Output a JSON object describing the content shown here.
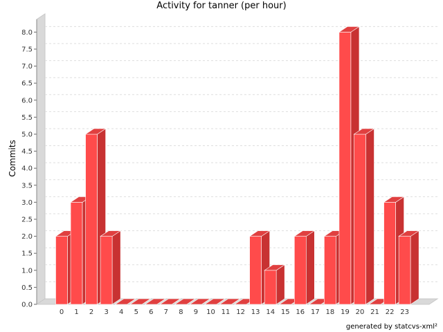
{
  "chart_data": {
    "type": "bar",
    "title": "Activity for tanner (per hour)",
    "xlabel": "",
    "ylabel": "Commits",
    "categories": [
      "0",
      "1",
      "2",
      "3",
      "4",
      "5",
      "6",
      "7",
      "8",
      "9",
      "10",
      "11",
      "12",
      "13",
      "14",
      "15",
      "16",
      "17",
      "18",
      "19",
      "20",
      "21",
      "22",
      "23"
    ],
    "values": [
      2,
      3,
      5,
      2,
      0,
      0,
      0,
      0,
      0,
      0,
      0,
      0,
      0,
      2,
      1,
      0,
      2,
      0,
      2,
      8,
      5,
      0,
      3,
      2
    ],
    "ylim": [
      0,
      8.5
    ],
    "yticks": [
      "0.0",
      "0.5",
      "1.0",
      "1.5",
      "2.0",
      "2.5",
      "3.0",
      "3.5",
      "4.0",
      "4.5",
      "5.0",
      "5.5",
      "6.0",
      "6.5",
      "7.0",
      "7.5",
      "8.0"
    ],
    "grid": true,
    "style": "3d",
    "colors": {
      "bar_front": "#ff4b4b",
      "bar_side": "#c83232",
      "bar_top": "#e04040",
      "wall": "#d9d9d9",
      "grid": "#dddddd"
    }
  },
  "footer": {
    "text": "generated by statcvs-xml²"
  }
}
